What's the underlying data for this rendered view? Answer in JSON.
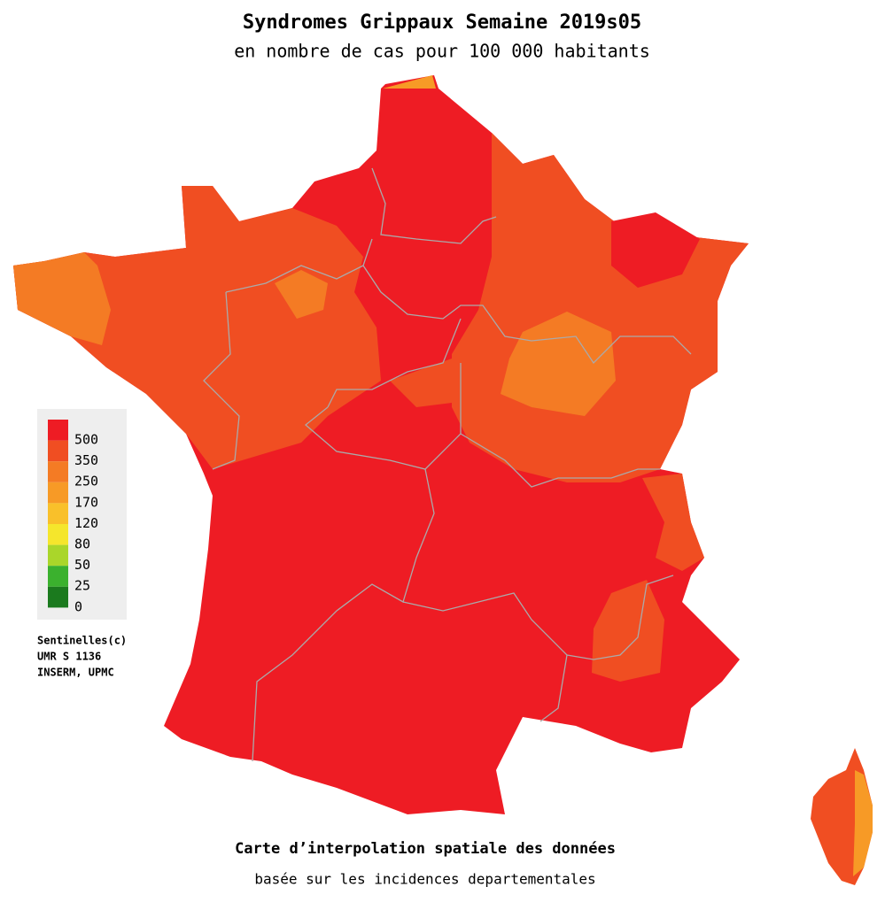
{
  "header": {
    "title": "Syndromes Grippaux Semaine 2019s05",
    "subtitle": "en nombre de cas pour 100 000 habitants"
  },
  "legend": {
    "items": [
      {
        "label": "500",
        "color": "#ee1c24"
      },
      {
        "label": "350",
        "color": "#f04e22"
      },
      {
        "label": "250",
        "color": "#f47b24"
      },
      {
        "label": "170",
        "color": "#f79a26"
      },
      {
        "label": "120",
        "color": "#f9c02a"
      },
      {
        "label": "80",
        "color": "#f5e62c"
      },
      {
        "label": "50",
        "color": "#aad62a"
      },
      {
        "label": "25",
        "color": "#3bb12e"
      },
      {
        "label": "0",
        "color": "#1b7a1e"
      }
    ]
  },
  "credits": [
    "Sentinelles(c)",
    "UMR S 1136",
    "INSERM, UPMC"
  ],
  "footer": {
    "title": "Carte d’interpolation spatiale des données",
    "subtitle": "basée sur les incidences departementales"
  }
}
